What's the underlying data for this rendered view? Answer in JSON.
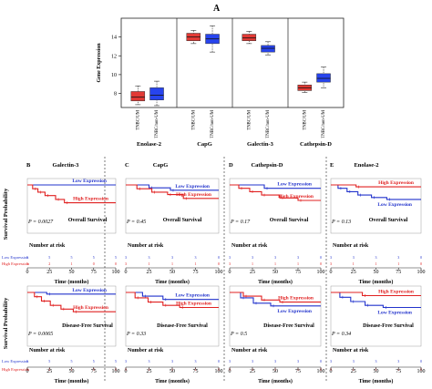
{
  "panel_a_letter": "A",
  "panel_a_ylabel": "Gene Expression",
  "panel_a_yticks": [
    "8",
    "10",
    "12",
    "14"
  ],
  "groups": [
    {
      "name": "Enolase-2",
      "labels": [
        "TNBC/UM",
        "TNBC/non-UM"
      ]
    },
    {
      "name": "CapG",
      "labels": [
        "TNBC/UM",
        "TNBC/non-UM"
      ]
    },
    {
      "name": "Galectin-3",
      "labels": [
        "TNBC/UM",
        "TNBC/non-UM"
      ]
    },
    {
      "name": "Cathepsin-D",
      "labels": [
        "TNBC/UM",
        "TNBC/non-UM"
      ]
    }
  ],
  "km_ylabel": "Survival Probability",
  "km_xlabel": "Time (months)",
  "km_xticks": [
    "0",
    "25",
    "50",
    "75",
    "100"
  ],
  "risk_title": "Number at risk",
  "risk_low_label": "Low Expression",
  "risk_high_label": "High Expression",
  "km_row_labels": [
    "Overall Survival",
    "Disease-Free Survival"
  ],
  "km_columns": [
    {
      "letter": "B",
      "gene": "Galectin-3"
    },
    {
      "letter": "C",
      "gene": "CapG"
    },
    {
      "letter": "D",
      "gene": "Cathepsin-D"
    },
    {
      "letter": "E",
      "gene": "Enolase-2"
    }
  ],
  "colors": {
    "uM": "#e8241f",
    "nonUM": "#1530e0",
    "low": "#2233cc",
    "high": "#e02020"
  },
  "chart_data": [
    {
      "type": "box",
      "ylabel": "Gene Expression",
      "ylim": [
        6.5,
        16
      ],
      "categories": [
        "Enolase-2",
        "CapG",
        "Galectin-3",
        "Cathepsin-D"
      ],
      "series": [
        {
          "name": "TNBC/UM",
          "boxes": [
            {
              "min": 6.8,
              "q1": 7.2,
              "median": 7.6,
              "q3": 8.2,
              "max": 8.8
            },
            {
              "min": 13.3,
              "q1": 13.6,
              "median": 14.0,
              "q3": 14.4,
              "max": 14.7
            },
            {
              "min": 13.3,
              "q1": 13.6,
              "median": 13.9,
              "q3": 14.3,
              "max": 14.6
            },
            {
              "min": 8.1,
              "q1": 8.3,
              "median": 8.6,
              "q3": 8.9,
              "max": 9.2
            }
          ]
        },
        {
          "name": "TNBC/non-UM",
          "boxes": [
            {
              "min": 6.7,
              "q1": 7.3,
              "median": 7.8,
              "q3": 8.6,
              "max": 9.3
            },
            {
              "min": 12.4,
              "q1": 13.3,
              "median": 13.8,
              "q3": 14.3,
              "max": 15.2
            },
            {
              "min": 12.1,
              "q1": 12.4,
              "median": 12.8,
              "q3": 13.1,
              "max": 13.5
            },
            {
              "min": 8.6,
              "q1": 9.2,
              "median": 9.6,
              "q3": 10.1,
              "max": 10.8
            }
          ]
        }
      ]
    },
    {
      "type": "line",
      "title": "Galectin-3",
      "subtitle": "Overall Survival",
      "xlabel": "Time (months)",
      "ylabel": "Survival Probability",
      "xlim": [
        0,
        100
      ],
      "ylim": [
        0,
        1
      ],
      "p_value": "P = 0.0027",
      "series": [
        {
          "name": "Low Expression",
          "x": [
            0,
            100
          ],
          "y": [
            1.0,
            1.0
          ]
        },
        {
          "name": "High Expression",
          "x": [
            0,
            6,
            12,
            20,
            32,
            42,
            100
          ],
          "y": [
            1.0,
            0.92,
            0.85,
            0.78,
            0.7,
            0.63,
            0.63
          ]
        }
      ],
      "risk_low": [
        "5",
        "5",
        "5",
        "5",
        "5"
      ],
      "risk_high": [
        "5",
        "2",
        "1",
        "0",
        "0"
      ]
    },
    {
      "type": "line",
      "title": "CapG",
      "subtitle": "Overall Survival",
      "xlabel": "Time (months)",
      "ylabel": "Survival Probability",
      "xlim": [
        0,
        100
      ],
      "ylim": [
        0,
        1
      ],
      "p_value": "P = 0.45",
      "series": [
        {
          "name": "Low Expression",
          "x": [
            0,
            25,
            48,
            100
          ],
          "y": [
            1.0,
            0.94,
            0.89,
            0.89
          ]
        },
        {
          "name": "High Expression",
          "x": [
            0,
            12,
            28,
            45,
            62,
            100
          ],
          "y": [
            1.0,
            0.92,
            0.85,
            0.8,
            0.72,
            0.72
          ]
        }
      ],
      "risk_low": [
        "3",
        "3",
        "3",
        "3",
        "0"
      ],
      "risk_high": [
        "3",
        "1",
        "1",
        "1",
        "0"
      ]
    },
    {
      "type": "line",
      "title": "Cathepsin-D",
      "subtitle": "Overall Survival",
      "xlabel": "Time (months)",
      "ylabel": "Survival Probability",
      "xlim": [
        0,
        100
      ],
      "ylim": [
        0,
        1
      ],
      "p_value": "P = 0.17",
      "series": [
        {
          "name": "Low Expression",
          "x": [
            0,
            38,
            100
          ],
          "y": [
            1.0,
            0.93,
            0.93
          ]
        },
        {
          "name": "High Expression",
          "x": [
            0,
            10,
            22,
            35,
            55,
            75,
            100
          ],
          "y": [
            1.0,
            0.93,
            0.86,
            0.79,
            0.73,
            0.68,
            0.68
          ]
        }
      ],
      "risk_low": [
        "3",
        "3",
        "3",
        "3",
        "0"
      ],
      "risk_high": [
        "3",
        "1",
        "1",
        "1",
        "0"
      ]
    },
    {
      "type": "line",
      "title": "Enolase-2",
      "subtitle": "Overall Survival",
      "xlabel": "Time (months)",
      "ylabel": "Survival Probability",
      "xlim": [
        0,
        100
      ],
      "ylim": [
        0,
        1
      ],
      "p_value": "P = 0.13",
      "series": [
        {
          "name": "Low Expression",
          "x": [
            0,
            8,
            18,
            30,
            45,
            62,
            100
          ],
          "y": [
            1.0,
            0.93,
            0.86,
            0.79,
            0.74,
            0.7,
            0.7
          ]
        },
        {
          "name": "High Expression",
          "x": [
            0,
            28,
            100
          ],
          "y": [
            1.0,
            0.96,
            0.96
          ]
        }
      ],
      "risk_low": [
        "3",
        "3",
        "3",
        "3",
        "0"
      ],
      "risk_high": [
        "3",
        "1",
        "1",
        "1",
        "0"
      ]
    },
    {
      "type": "line",
      "title": "Galectin-3",
      "subtitle": "Disease-Free Survival",
      "xlabel": "Time (months)",
      "ylabel": "Survival Probability",
      "xlim": [
        0,
        100
      ],
      "ylim": [
        0,
        1
      ],
      "p_value": "P = 0.0065",
      "series": [
        {
          "name": "Low Expression",
          "x": [
            0,
            22,
            100
          ],
          "y": [
            1.0,
            0.97,
            0.97
          ]
        },
        {
          "name": "High Expression",
          "x": [
            0,
            8,
            16,
            26,
            38,
            52,
            100
          ],
          "y": [
            1.0,
            0.92,
            0.84,
            0.76,
            0.69,
            0.64,
            0.64
          ]
        }
      ],
      "risk_low": [
        "5",
        "5",
        "5",
        "5",
        "5"
      ],
      "risk_high": [
        "5",
        "2",
        "1",
        "0",
        "0"
      ]
    },
    {
      "type": "line",
      "title": "CapG",
      "subtitle": "Disease-Free Survival",
      "xlabel": "Time (months)",
      "ylabel": "Survival Probability",
      "xlim": [
        0,
        100
      ],
      "ylim": [
        0,
        1
      ],
      "p_value": "P = 0.33",
      "series": [
        {
          "name": "Low Expression",
          "x": [
            0,
            18,
            40,
            100
          ],
          "y": [
            1.0,
            0.93,
            0.87,
            0.87
          ]
        },
        {
          "name": "High Expression",
          "x": [
            0,
            10,
            24,
            40,
            58,
            100
          ],
          "y": [
            1.0,
            0.9,
            0.82,
            0.76,
            0.72,
            0.72
          ]
        }
      ],
      "risk_low": [
        "3",
        "3",
        "3",
        "3",
        "0"
      ],
      "risk_high": [
        "3",
        "1",
        "1",
        "1",
        "0"
      ]
    },
    {
      "type": "line",
      "title": "Cathepsin-D",
      "subtitle": "Disease-Free Survival",
      "xlabel": "Time (months)",
      "ylabel": "Survival Probability",
      "xlim": [
        0,
        100
      ],
      "ylim": [
        0,
        1
      ],
      "p_value": "P = 0.5",
      "series": [
        {
          "name": "Low Expression",
          "x": [
            0,
            12,
            26,
            45,
            100
          ],
          "y": [
            1.0,
            0.9,
            0.8,
            0.75,
            0.75
          ]
        },
        {
          "name": "High Expression",
          "x": [
            0,
            15,
            35,
            55,
            100
          ],
          "y": [
            1.0,
            0.93,
            0.86,
            0.82,
            0.82
          ]
        }
      ],
      "risk_low": [
        "3",
        "3",
        "3",
        "3",
        "0"
      ],
      "risk_high": [
        "3",
        "1",
        "1",
        "1",
        "0"
      ]
    },
    {
      "type": "line",
      "title": "Enolase-2",
      "subtitle": "Disease-Free Survival",
      "xlabel": "Time (months)",
      "ylabel": "Survival Probability",
      "xlim": [
        0,
        100
      ],
      "ylim": [
        0,
        1
      ],
      "p_value": "P = 0.34",
      "series": [
        {
          "name": "Low Expression",
          "x": [
            0,
            10,
            22,
            38,
            58,
            100
          ],
          "y": [
            1.0,
            0.91,
            0.83,
            0.76,
            0.72,
            0.72
          ]
        },
        {
          "name": "High Expression",
          "x": [
            0,
            35,
            100
          ],
          "y": [
            1.0,
            0.94,
            0.94
          ]
        }
      ],
      "risk_low": [
        "3",
        "3",
        "3",
        "3",
        "0"
      ],
      "risk_high": [
        "3",
        "1",
        "1",
        "1",
        "0"
      ]
    }
  ]
}
